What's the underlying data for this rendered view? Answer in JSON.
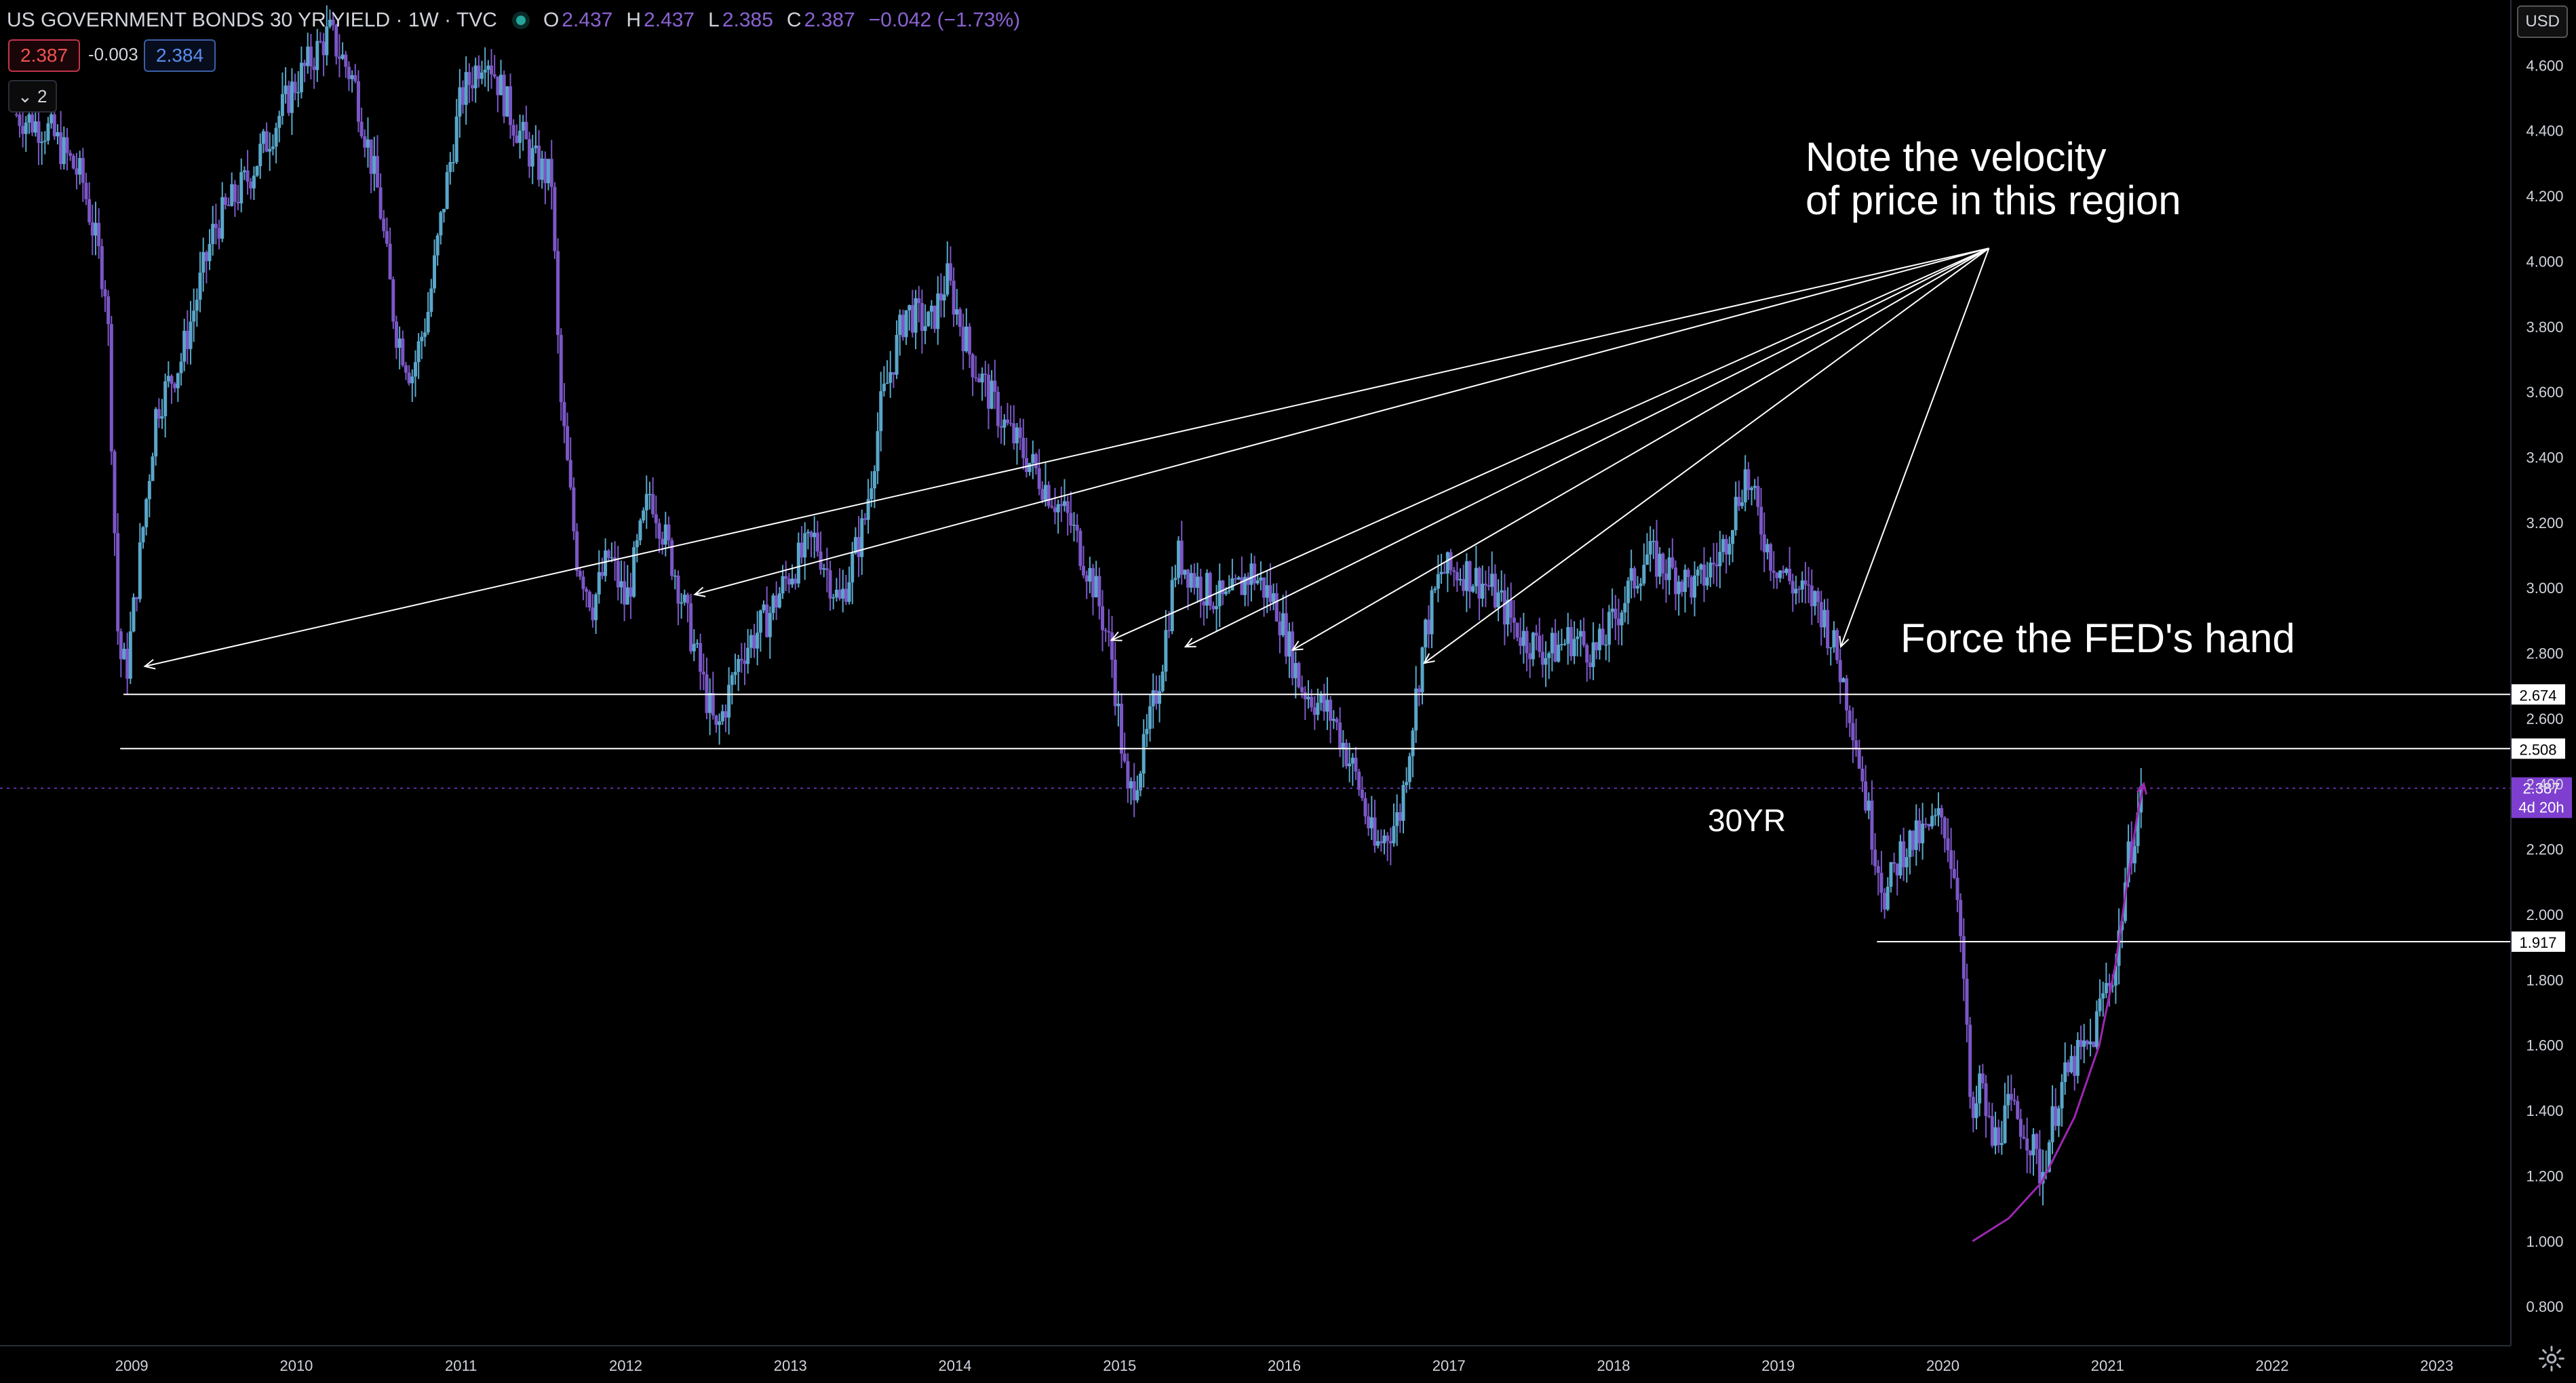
{
  "header": {
    "symbol": "US GOVERNMENT BONDS 30 YR YIELD · 1W · TVC",
    "open_label": "O",
    "open": "2.437",
    "high_label": "H",
    "high": "2.437",
    "low_label": "L",
    "low": "2.385",
    "close_label": "C",
    "close": "2.387",
    "change": "−0.042 (−1.73%)"
  },
  "trade": {
    "sell": "2.387",
    "spread": "-0.003",
    "buy": "2.384"
  },
  "layers": {
    "count": "2"
  },
  "currency": "USD",
  "colors": {
    "background": "#000000",
    "candle": "#5aa6c9",
    "candle_down": "#7b57c6",
    "line": "#ffffff",
    "curve": "#9c27b0",
    "last_price": "#7e3fd0"
  },
  "annotations": {
    "note": [
      "Note the velocity",
      "of price in this region"
    ],
    "force": "Force the FED's hand",
    "symbol_label": "30YR"
  },
  "chart_data": {
    "type": "candlestick",
    "x_ticks": [
      "2009",
      "2010",
      "2011",
      "2012",
      "2013",
      "2014",
      "2015",
      "2016",
      "2017",
      "2018",
      "2019",
      "2020",
      "2021",
      "2022",
      "2023"
    ],
    "y_ticks": [
      "0.800",
      "1.000",
      "1.200",
      "1.400",
      "1.600",
      "1.800",
      "2.000",
      "2.200",
      "2.400",
      "2.600",
      "2.800",
      "3.000",
      "3.200",
      "3.400",
      "3.600",
      "3.800",
      "4.000",
      "4.200",
      "4.400",
      "4.600"
    ],
    "ylim": [
      0.68,
      4.8
    ],
    "xlim": [
      2008.2,
      2023.45
    ],
    "scale": "linear",
    "price_path": [
      [
        2008.3,
        4.45
      ],
      [
        2008.5,
        4.4
      ],
      [
        2008.7,
        4.25
      ],
      [
        2008.85,
        3.9
      ],
      [
        2008.92,
        2.8
      ],
      [
        2008.97,
        2.75
      ],
      [
        2009.05,
        3.1
      ],
      [
        2009.15,
        3.55
      ],
      [
        2009.3,
        3.7
      ],
      [
        2009.5,
        4.1
      ],
      [
        2009.7,
        4.25
      ],
      [
        2009.9,
        4.45
      ],
      [
        2010.0,
        4.55
      ],
      [
        2010.2,
        4.7
      ],
      [
        2010.35,
        4.55
      ],
      [
        2010.5,
        4.2
      ],
      [
        2010.6,
        3.8
      ],
      [
        2010.7,
        3.65
      ],
      [
        2010.8,
        3.85
      ],
      [
        2010.9,
        4.2
      ],
      [
        2011.0,
        4.5
      ],
      [
        2011.15,
        4.65
      ],
      [
        2011.3,
        4.45
      ],
      [
        2011.45,
        4.3
      ],
      [
        2011.55,
        4.25
      ],
      [
        2011.6,
        3.6
      ],
      [
        2011.7,
        3.1
      ],
      [
        2011.8,
        2.95
      ],
      [
        2011.9,
        3.1
      ],
      [
        2012.0,
        2.95
      ],
      [
        2012.15,
        3.3
      ],
      [
        2012.3,
        3.05
      ],
      [
        2012.45,
        2.75
      ],
      [
        2012.55,
        2.55
      ],
      [
        2012.7,
        2.8
      ],
      [
        2012.85,
        2.9
      ],
      [
        2013.0,
        3.05
      ],
      [
        2013.15,
        3.15
      ],
      [
        2013.3,
        2.95
      ],
      [
        2013.45,
        3.2
      ],
      [
        2013.55,
        3.55
      ],
      [
        2013.7,
        3.85
      ],
      [
        2013.85,
        3.8
      ],
      [
        2013.95,
        3.95
      ],
      [
        2014.1,
        3.7
      ],
      [
        2014.3,
        3.5
      ],
      [
        2014.5,
        3.35
      ],
      [
        2014.7,
        3.2
      ],
      [
        2014.85,
        3.0
      ],
      [
        2014.95,
        2.8
      ],
      [
        2015.05,
        2.35
      ],
      [
        2015.15,
        2.5
      ],
      [
        2015.25,
        2.75
      ],
      [
        2015.35,
        3.1
      ],
      [
        2015.5,
        3.0
      ],
      [
        2015.65,
        2.95
      ],
      [
        2015.8,
        3.05
      ],
      [
        2015.95,
        2.95
      ],
      [
        2016.1,
        2.7
      ],
      [
        2016.3,
        2.6
      ],
      [
        2016.45,
        2.4
      ],
      [
        2016.55,
        2.2
      ],
      [
        2016.7,
        2.3
      ],
      [
        2016.85,
        2.85
      ],
      [
        2016.95,
        3.05
      ],
      [
        2017.1,
        3.05
      ],
      [
        2017.25,
        3.0
      ],
      [
        2017.45,
        2.85
      ],
      [
        2017.6,
        2.8
      ],
      [
        2017.75,
        2.85
      ],
      [
        2017.9,
        2.8
      ],
      [
        2018.05,
        2.95
      ],
      [
        2018.2,
        3.1
      ],
      [
        2018.35,
        3.05
      ],
      [
        2018.5,
        3.0
      ],
      [
        2018.65,
        3.1
      ],
      [
        2018.8,
        3.35
      ],
      [
        2018.95,
        3.1
      ],
      [
        2019.1,
        3.0
      ],
      [
        2019.25,
        2.95
      ],
      [
        2019.35,
        2.8
      ],
      [
        2019.45,
        2.6
      ],
      [
        2019.55,
        2.3
      ],
      [
        2019.65,
        2.05
      ],
      [
        2019.75,
        2.2
      ],
      [
        2019.9,
        2.25
      ],
      [
        2020.0,
        2.3
      ],
      [
        2020.1,
        2.05
      ],
      [
        2020.18,
        1.3
      ],
      [
        2020.22,
        1.5
      ],
      [
        2020.3,
        1.3
      ],
      [
        2020.4,
        1.4
      ],
      [
        2020.5,
        1.35
      ],
      [
        2020.6,
        1.2
      ],
      [
        2020.7,
        1.45
      ],
      [
        2020.8,
        1.55
      ],
      [
        2020.9,
        1.6
      ],
      [
        2020.97,
        1.75
      ],
      [
        2021.05,
        1.85
      ],
      [
        2021.12,
        2.15
      ],
      [
        2021.2,
        2.35
      ],
      [
        2021.22,
        2.387
      ]
    ],
    "levels": [
      {
        "price": 2.674,
        "label": "2.674",
        "x_start": 2008.95
      },
      {
        "price": 2.508,
        "label": "2.508",
        "x_start": 2008.93
      },
      {
        "price": 1.917,
        "label": "1.917",
        "x_start": 2019.6
      }
    ],
    "last_price": {
      "price": 2.387,
      "label": "2.387",
      "countdown": "4d 20h"
    },
    "arrows_from": [
      2020.28,
      4.04
    ],
    "arrow_targets": [
      [
        2009.08,
        2.76
      ],
      [
        2012.42,
        2.98
      ],
      [
        2014.95,
        2.84
      ],
      [
        2015.4,
        2.82
      ],
      [
        2016.05,
        2.81
      ],
      [
        2016.85,
        2.77
      ],
      [
        2019.38,
        2.82
      ]
    ],
    "curve": [
      [
        2020.18,
        1.0
      ],
      [
        2020.4,
        1.07
      ],
      [
        2020.6,
        1.18
      ],
      [
        2020.8,
        1.38
      ],
      [
        2020.95,
        1.6
      ],
      [
        2021.05,
        1.85
      ],
      [
        2021.12,
        2.1
      ],
      [
        2021.18,
        2.3
      ],
      [
        2021.22,
        2.4
      ]
    ]
  }
}
